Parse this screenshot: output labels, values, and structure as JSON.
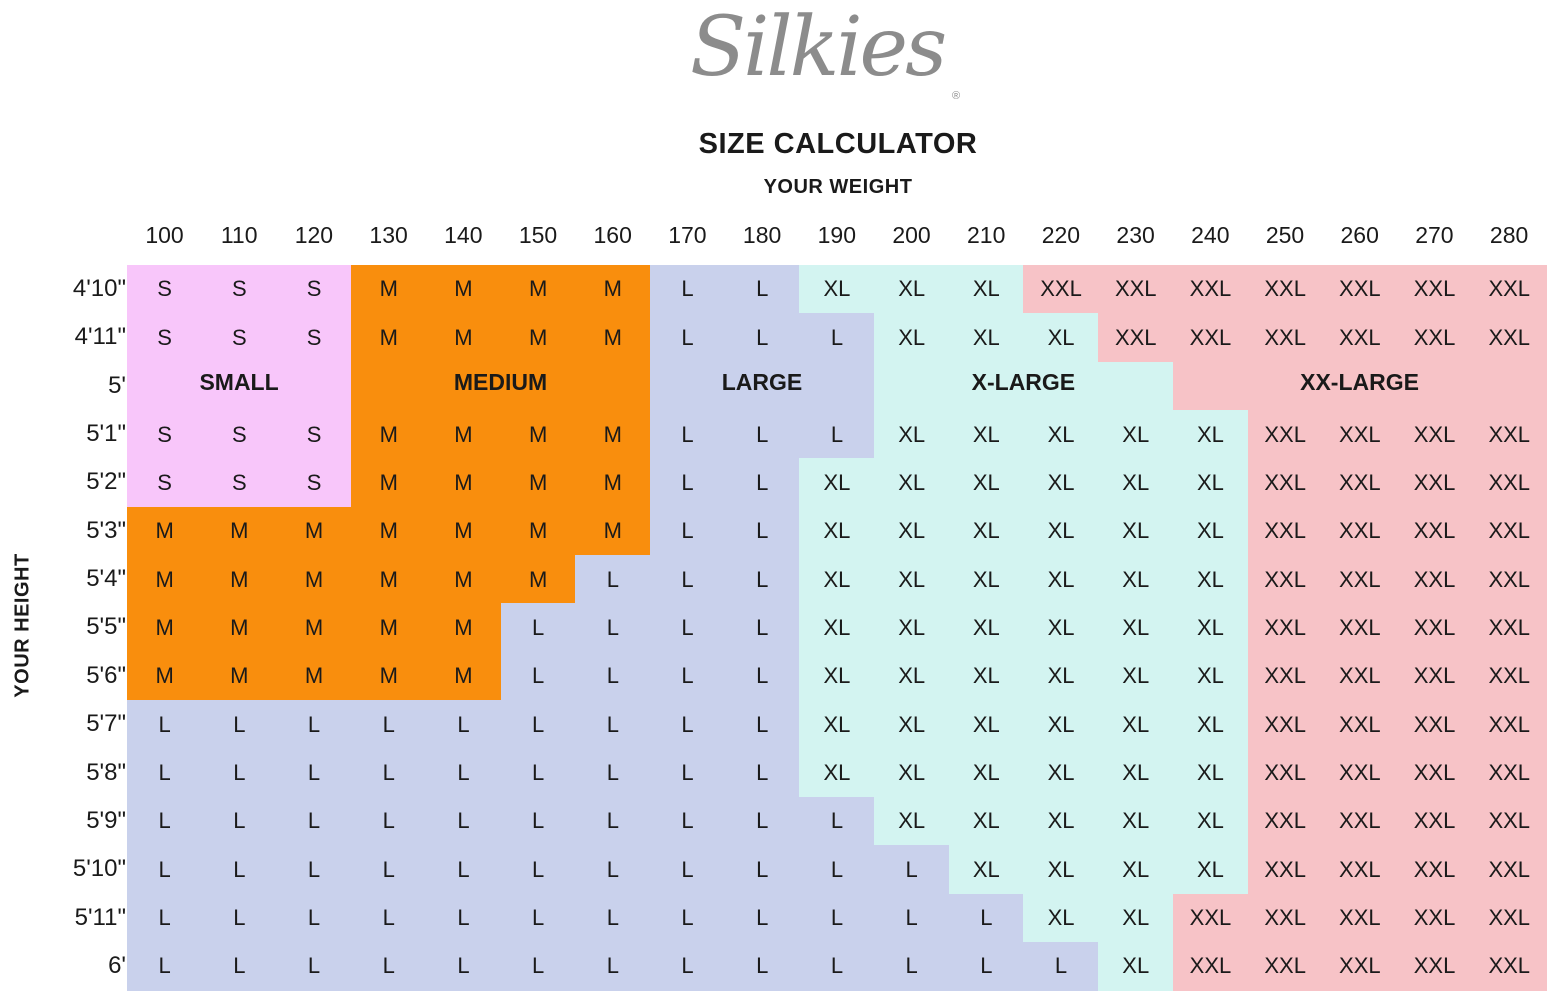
{
  "brand": {
    "logo_text": "Silkies",
    "registered_mark": "®"
  },
  "title": "SIZE CALCULATOR",
  "weight_axis_label": "YOUR WEIGHT",
  "height_axis_label": "YOUR HEIGHT",
  "weights": [
    "100",
    "110",
    "120",
    "130",
    "140",
    "150",
    "160",
    "170",
    "180",
    "190",
    "200",
    "210",
    "220",
    "230",
    "240",
    "250",
    "260",
    "270",
    "280"
  ],
  "heights": [
    "4'10\"",
    "4'11\"",
    "5'",
    "5'1\"",
    "5'2\"",
    "5'3\"",
    "5'4\"",
    "5'5\"",
    "5'6\"",
    "5'7\"",
    "5'8\"",
    "5'9\"",
    "5'10\"",
    "5'11\"",
    "6'"
  ],
  "zone_labels": {
    "small": "SMALL",
    "medium": "MEDIUM",
    "large": "LARGE",
    "xlarge": "X-LARGE",
    "xxlarge": "XX-LARGE"
  },
  "colors": {
    "S": "#f8c6fa",
    "M": "#f98e0d",
    "L": "#c9d1ec",
    "XL": "#d3f4f1",
    "XXL": "#f7c3c7"
  },
  "chart_data": {
    "type": "table",
    "title": "SIZE CALCULATOR",
    "xlabel": "YOUR WEIGHT",
    "ylabel": "YOUR HEIGHT",
    "rows": [
      [
        "S",
        "S",
        "S",
        "M",
        "M",
        "M",
        "M",
        "L",
        "L",
        "XL",
        "XL",
        "XL",
        "XXL",
        "XXL",
        "XXL",
        "XXL",
        "XXL",
        "XXL",
        "XXL"
      ],
      [
        "S",
        "S",
        "S",
        "M",
        "M",
        "M",
        "M",
        "L",
        "L",
        "L",
        "XL",
        "XL",
        "XL",
        "XXL",
        "XXL",
        "XXL",
        "XXL",
        "XXL",
        "XXL"
      ],
      [],
      [
        "S",
        "S",
        "S",
        "M",
        "M",
        "M",
        "M",
        "L",
        "L",
        "L",
        "XL",
        "XL",
        "XL",
        "XL",
        "XL",
        "XXL",
        "XXL",
        "XXL",
        "XXL"
      ],
      [
        "S",
        "S",
        "S",
        "M",
        "M",
        "M",
        "M",
        "L",
        "L",
        "XL",
        "XL",
        "XL",
        "XL",
        "XL",
        "XL",
        "XXL",
        "XXL",
        "XXL",
        "XXL"
      ],
      [
        "M",
        "M",
        "M",
        "M",
        "M",
        "M",
        "M",
        "L",
        "L",
        "XL",
        "XL",
        "XL",
        "XL",
        "XL",
        "XL",
        "XXL",
        "XXL",
        "XXL",
        "XXL"
      ],
      [
        "M",
        "M",
        "M",
        "M",
        "M",
        "M",
        "L",
        "L",
        "L",
        "XL",
        "XL",
        "XL",
        "XL",
        "XL",
        "XL",
        "XXL",
        "XXL",
        "XXL",
        "XXL"
      ],
      [
        "M",
        "M",
        "M",
        "M",
        "M",
        "L",
        "L",
        "L",
        "L",
        "XL",
        "XL",
        "XL",
        "XL",
        "XL",
        "XL",
        "XXL",
        "XXL",
        "XXL",
        "XXL"
      ],
      [
        "M",
        "M",
        "M",
        "M",
        "M",
        "L",
        "L",
        "L",
        "L",
        "XL",
        "XL",
        "XL",
        "XL",
        "XL",
        "XL",
        "XXL",
        "XXL",
        "XXL",
        "XXL"
      ],
      [
        "L",
        "L",
        "L",
        "L",
        "L",
        "L",
        "L",
        "L",
        "L",
        "XL",
        "XL",
        "XL",
        "XL",
        "XL",
        "XL",
        "XXL",
        "XXL",
        "XXL",
        "XXL"
      ],
      [
        "L",
        "L",
        "L",
        "L",
        "L",
        "L",
        "L",
        "L",
        "L",
        "XL",
        "XL",
        "XL",
        "XL",
        "XL",
        "XL",
        "XXL",
        "XXL",
        "XXL",
        "XXL"
      ],
      [
        "L",
        "L",
        "L",
        "L",
        "L",
        "L",
        "L",
        "L",
        "L",
        "L",
        "XL",
        "XL",
        "XL",
        "XL",
        "XL",
        "XXL",
        "XXL",
        "XXL",
        "XXL"
      ],
      [
        "L",
        "L",
        "L",
        "L",
        "L",
        "L",
        "L",
        "L",
        "L",
        "L",
        "L",
        "XL",
        "XL",
        "XL",
        "XL",
        "XXL",
        "XXL",
        "XXL",
        "XXL"
      ],
      [
        "L",
        "L",
        "L",
        "L",
        "L",
        "L",
        "L",
        "L",
        "L",
        "L",
        "L",
        "L",
        "XL",
        "XL",
        "XXL",
        "XXL",
        "XXL",
        "XXL",
        "XXL"
      ],
      [
        "L",
        "L",
        "L",
        "L",
        "L",
        "L",
        "L",
        "L",
        "L",
        "L",
        "L",
        "L",
        "L",
        "XL",
        "XXL",
        "XXL",
        "XXL",
        "XXL",
        "XXL"
      ]
    ],
    "zone_row_fill": [
      "S",
      "S",
      "S",
      "M",
      "M",
      "M",
      "M",
      "L",
      "L",
      "L",
      "XL",
      "XL",
      "XL",
      "XL",
      "XXL",
      "XXL",
      "XXL",
      "XXL",
      "XXL"
    ]
  }
}
